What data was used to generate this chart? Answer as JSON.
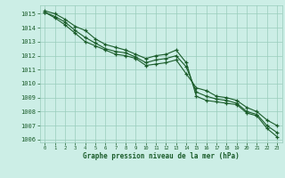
{
  "title": "Graphe pression niveau de la mer (hPa)",
  "background_color": "#cceee6",
  "grid_color": "#99ccbb",
  "line_color": "#1a5c2a",
  "xlim": [
    -0.5,
    23.5
  ],
  "ylim": [
    1005.8,
    1015.6
  ],
  "xticks": [
    0,
    1,
    2,
    3,
    4,
    5,
    6,
    7,
    8,
    9,
    10,
    11,
    12,
    13,
    14,
    15,
    16,
    17,
    18,
    19,
    20,
    21,
    22,
    23
  ],
  "yticks": [
    1006,
    1007,
    1008,
    1009,
    1010,
    1011,
    1012,
    1013,
    1014,
    1015
  ],
  "series": [
    [
      1015.2,
      1015.0,
      1014.6,
      1014.1,
      1013.8,
      1013.2,
      1012.8,
      1012.6,
      1012.4,
      1012.1,
      1011.8,
      1012.0,
      1012.1,
      1012.4,
      1011.5,
      1009.1,
      1008.8,
      1008.7,
      1008.6,
      1008.5,
      1007.9,
      1007.7,
      1006.8,
      1006.2
    ],
    [
      1015.1,
      1014.8,
      1014.4,
      1013.8,
      1013.3,
      1012.9,
      1012.5,
      1012.3,
      1012.2,
      1011.9,
      1011.5,
      1011.7,
      1011.8,
      1012.0,
      1011.2,
      1009.4,
      1009.1,
      1008.9,
      1008.8,
      1008.6,
      1008.0,
      1007.8,
      1007.0,
      1006.5
    ],
    [
      1015.1,
      1014.7,
      1014.2,
      1013.6,
      1013.0,
      1012.7,
      1012.4,
      1012.1,
      1012.0,
      1011.8,
      1011.3,
      1011.4,
      1011.5,
      1011.7,
      1010.7,
      1009.7,
      1009.5,
      1009.1,
      1009.0,
      1008.8,
      1008.3,
      1008.0,
      1007.4,
      1007.0
    ]
  ]
}
